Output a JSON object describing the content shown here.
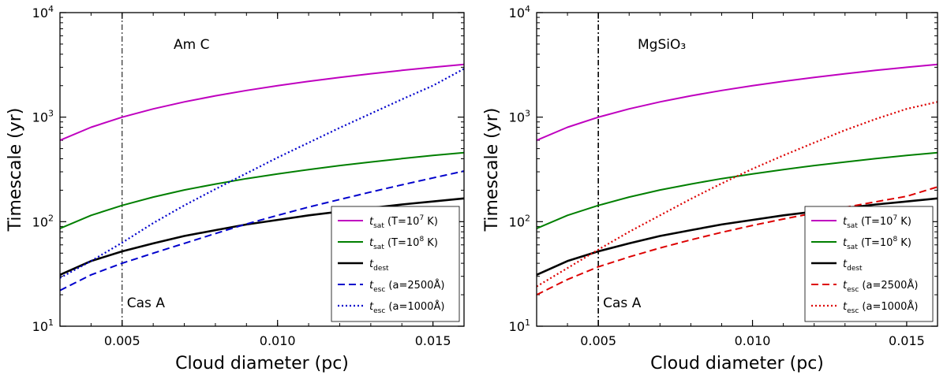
{
  "chart_data": [
    {
      "type": "line",
      "panel_label": "Am C",
      "xlabel": "Cloud diameter (pc)",
      "ylabel": "Timescale (yr)",
      "xscale": "linear",
      "yscale": "log",
      "xlim": [
        0.003,
        0.016
      ],
      "ylim": [
        10,
        10000
      ],
      "xticks": [
        0.005,
        0.01,
        0.015
      ],
      "xtick_labels": [
        "0.005",
        "0.010",
        "0.015"
      ],
      "yticks": [
        10,
        100,
        1000,
        10000
      ],
      "ytick_labels": [
        {
          "base": "10",
          "exp": "1"
        },
        {
          "base": "10",
          "exp": "2"
        },
        {
          "base": "10",
          "exp": "3"
        },
        {
          "base": "10",
          "exp": "4"
        }
      ],
      "vline": {
        "x": 0.005,
        "label": "Cas A",
        "style": "dashdot"
      },
      "legend_position": "lower right",
      "series": [
        {
          "name": "t_sat (T=10^7 K)",
          "legend": {
            "sym": "t",
            "sub": "sat",
            "rest": " (T=10",
            "exp": "7",
            "tail": " K)"
          },
          "color": "#bf00bf",
          "style": "solid",
          "width": 2,
          "x": [
            0.003,
            0.004,
            0.005,
            0.006,
            0.007,
            0.008,
            0.009,
            0.01,
            0.011,
            0.012,
            0.013,
            0.014,
            0.015,
            0.016
          ],
          "y": [
            600,
            800,
            1000,
            1200,
            1400,
            1600,
            1800,
            2000,
            2200,
            2400,
            2600,
            2800,
            3000,
            3200
          ]
        },
        {
          "name": "t_sat (T=10^8 K)",
          "legend": {
            "sym": "t",
            "sub": "sat",
            "rest": " (T=10",
            "exp": "8",
            "tail": " K)"
          },
          "color": "#007f00",
          "style": "solid",
          "width": 2,
          "x": [
            0.003,
            0.004,
            0.005,
            0.006,
            0.007,
            0.008,
            0.009,
            0.01,
            0.011,
            0.012,
            0.013,
            0.014,
            0.015,
            0.016
          ],
          "y": [
            86,
            115,
            143,
            172,
            201,
            229,
            258,
            286,
            315,
            344,
            372,
            401,
            430,
            458
          ]
        },
        {
          "name": "t_dest",
          "legend": {
            "sym": "t",
            "sub": "dest",
            "rest": "",
            "exp": "",
            "tail": ""
          },
          "color": "#000000",
          "style": "solid",
          "width": 2.6,
          "x": [
            0.003,
            0.004,
            0.005,
            0.006,
            0.007,
            0.008,
            0.009,
            0.01,
            0.011,
            0.012,
            0.013,
            0.014,
            0.015,
            0.016
          ],
          "y": [
            31,
            42,
            52,
            62,
            73,
            83,
            94,
            104,
            115,
            125,
            135,
            146,
            156,
            167
          ]
        },
        {
          "name": "t_esc (a=2500Å)",
          "legend": {
            "sym": "t",
            "sub": "esc",
            "rest": " (a=2500Å)",
            "exp": "",
            "tail": ""
          },
          "color": "#0000cc",
          "style": "dashed",
          "width": 2,
          "x": [
            0.003,
            0.004,
            0.005,
            0.006,
            0.007,
            0.008,
            0.009,
            0.01,
            0.011,
            0.012,
            0.013,
            0.014,
            0.015,
            0.016
          ],
          "y": [
            22,
            31,
            40,
            50,
            62,
            77,
            95,
            115,
            138,
            163,
            192,
            225,
            262,
            305
          ]
        },
        {
          "name": "t_esc (a=1000Å)",
          "legend": {
            "sym": "t",
            "sub": "esc",
            "rest": " (a=1000Å)",
            "exp": "",
            "tail": ""
          },
          "color": "#0000cc",
          "style": "dotted",
          "width": 2.2,
          "x": [
            0.003,
            0.004,
            0.005,
            0.006,
            0.007,
            0.008,
            0.009,
            0.01,
            0.011,
            0.012,
            0.013,
            0.014,
            0.015,
            0.016
          ],
          "y": [
            29,
            42,
            63,
            97,
            143,
            205,
            290,
            410,
            570,
            790,
            1080,
            1480,
            2000,
            2900
          ]
        }
      ]
    },
    {
      "type": "line",
      "panel_label": "MgSiO₃",
      "xlabel": "Cloud diameter (pc)",
      "ylabel": "Timescale (yr)",
      "xscale": "linear",
      "yscale": "log",
      "xlim": [
        0.003,
        0.016
      ],
      "ylim": [
        10,
        10000
      ],
      "xticks": [
        0.005,
        0.01,
        0.015
      ],
      "xtick_labels": [
        "0.005",
        "0.010",
        "0.015"
      ],
      "yticks": [
        10,
        100,
        1000,
        10000
      ],
      "ytick_labels": [
        {
          "base": "10",
          "exp": "1"
        },
        {
          "base": "10",
          "exp": "2"
        },
        {
          "base": "10",
          "exp": "3"
        },
        {
          "base": "10",
          "exp": "4"
        }
      ],
      "vline": {
        "x": 0.005,
        "label": "Cas A",
        "style": "dashdot"
      },
      "legend_position": "lower right",
      "series": [
        {
          "name": "t_sat (T=10^7 K)",
          "legend": {
            "sym": "t",
            "sub": "sat",
            "rest": " (T=10",
            "exp": "7",
            "tail": " K)"
          },
          "color": "#bf00bf",
          "style": "solid",
          "width": 2,
          "x": [
            0.003,
            0.004,
            0.005,
            0.006,
            0.007,
            0.008,
            0.009,
            0.01,
            0.011,
            0.012,
            0.013,
            0.014,
            0.015,
            0.016
          ],
          "y": [
            600,
            800,
            1000,
            1200,
            1400,
            1600,
            1800,
            2000,
            2200,
            2400,
            2600,
            2800,
            3000,
            3200
          ]
        },
        {
          "name": "t_sat (T=10^8 K)",
          "legend": {
            "sym": "t",
            "sub": "sat",
            "rest": " (T=10",
            "exp": "8",
            "tail": " K)"
          },
          "color": "#007f00",
          "style": "solid",
          "width": 2,
          "x": [
            0.003,
            0.004,
            0.005,
            0.006,
            0.007,
            0.008,
            0.009,
            0.01,
            0.011,
            0.012,
            0.013,
            0.014,
            0.015,
            0.016
          ],
          "y": [
            86,
            115,
            143,
            172,
            201,
            229,
            258,
            286,
            315,
            344,
            372,
            401,
            430,
            458
          ]
        },
        {
          "name": "t_dest",
          "legend": {
            "sym": "t",
            "sub": "dest",
            "rest": "",
            "exp": "",
            "tail": ""
          },
          "color": "#000000",
          "style": "solid",
          "width": 2.6,
          "x": [
            0.003,
            0.004,
            0.005,
            0.006,
            0.007,
            0.008,
            0.009,
            0.01,
            0.011,
            0.012,
            0.013,
            0.014,
            0.015,
            0.016
          ],
          "y": [
            31,
            42,
            52,
            62,
            73,
            83,
            94,
            104,
            115,
            125,
            135,
            146,
            156,
            167
          ]
        },
        {
          "name": "t_esc (a=2500Å)",
          "legend": {
            "sym": "t",
            "sub": "esc",
            "rest": " (a=2500Å)",
            "exp": "",
            "tail": ""
          },
          "color": "#dd0000",
          "style": "dashed",
          "width": 2,
          "x": [
            0.003,
            0.004,
            0.005,
            0.006,
            0.007,
            0.008,
            0.009,
            0.01,
            0.011,
            0.012,
            0.013,
            0.014,
            0.015,
            0.016
          ],
          "y": [
            20,
            28,
            37,
            46,
            56,
            67,
            79,
            92,
            106,
            121,
            137,
            155,
            175,
            215
          ]
        },
        {
          "name": "t_esc (a=1000Å)",
          "legend": {
            "sym": "t",
            "sub": "esc",
            "rest": " (a=1000Å)",
            "exp": "",
            "tail": ""
          },
          "color": "#dd0000",
          "style": "dotted",
          "width": 2.2,
          "x": [
            0.003,
            0.004,
            0.005,
            0.006,
            0.007,
            0.008,
            0.009,
            0.01,
            0.011,
            0.012,
            0.013,
            0.014,
            0.015,
            0.016
          ],
          "y": [
            24,
            36,
            54,
            80,
            115,
            165,
            232,
            320,
            430,
            570,
            750,
            960,
            1200,
            1400
          ]
        }
      ]
    }
  ]
}
